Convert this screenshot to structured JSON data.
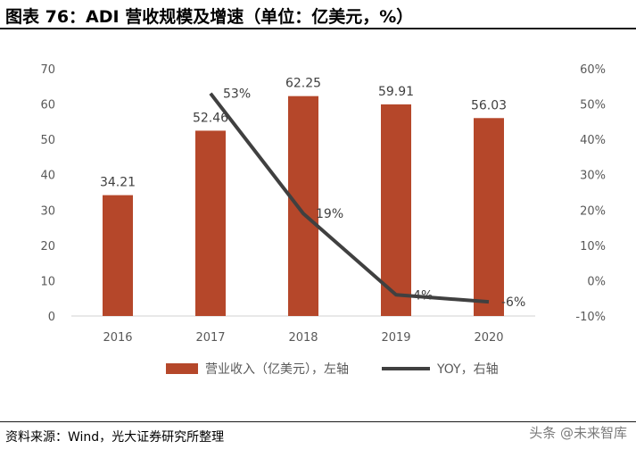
{
  "title": "图表 76：ADI 营收规模及增速（单位：亿美元，%）",
  "source": "资料来源：Wind，光大证券研究所整理",
  "watermark": "头条 @未来智库",
  "chart_data": {
    "type": "bar",
    "categories": [
      "2016",
      "2017",
      "2018",
      "2019",
      "2020"
    ],
    "series": [
      {
        "name": "营业收入（亿美元），左轴",
        "type": "bar",
        "axis": "left",
        "color": "#b5472a",
        "values": [
          34.21,
          52.46,
          62.25,
          59.91,
          56.03
        ],
        "labels": [
          "34.21",
          "52.46",
          "62.25",
          "59.91",
          "56.03"
        ]
      },
      {
        "name": "YOY，右轴",
        "type": "line",
        "axis": "right",
        "color": "#404040",
        "values": [
          null,
          53,
          19,
          -4,
          -6
        ],
        "labels": [
          "",
          "53%",
          "19%",
          "-4%",
          "-6%"
        ]
      }
    ],
    "left_axis": {
      "range": [
        0,
        70
      ],
      "ticks": [
        "0",
        "10",
        "20",
        "30",
        "40",
        "50",
        "60",
        "70"
      ]
    },
    "right_axis": {
      "range": [
        -10,
        60
      ],
      "ticks": [
        "-10%",
        "0%",
        "10%",
        "20%",
        "30%",
        "40%",
        "50%",
        "60%"
      ]
    },
    "grid": false,
    "legend_position": "bottom"
  }
}
